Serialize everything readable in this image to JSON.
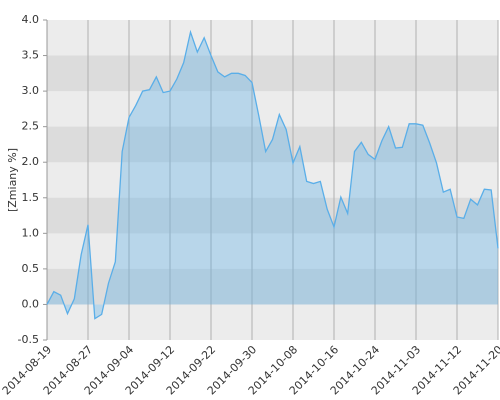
{
  "chart_data": {
    "type": "area",
    "y_label": "[Zmiany %]",
    "categories": [
      "2014-08-19",
      null,
      null,
      null,
      null,
      null,
      "2014-08-27",
      null,
      null,
      null,
      null,
      null,
      "2014-09-04",
      null,
      null,
      null,
      null,
      null,
      "2014-09-12",
      null,
      null,
      null,
      null,
      null,
      "2014-09-22",
      null,
      null,
      null,
      null,
      null,
      "2014-09-30",
      null,
      null,
      null,
      null,
      null,
      "2014-10-08",
      null,
      null,
      null,
      null,
      null,
      "2014-10-16",
      null,
      null,
      null,
      null,
      null,
      "2014-10-24",
      null,
      null,
      null,
      null,
      null,
      "2014-11-03",
      null,
      null,
      null,
      null,
      null,
      "2014-11-12",
      null,
      null,
      null,
      null,
      null,
      "2014-11-20"
    ],
    "values": [
      0.0,
      0.18,
      0.13,
      -0.13,
      0.08,
      0.7,
      1.12,
      -0.2,
      -0.14,
      0.3,
      0.6,
      2.15,
      2.63,
      2.8,
      3.0,
      3.02,
      3.2,
      2.98,
      3.0,
      3.17,
      3.4,
      3.83,
      3.55,
      3.75,
      3.5,
      3.27,
      3.2,
      3.25,
      3.25,
      3.22,
      3.12,
      2.65,
      2.15,
      2.32,
      2.67,
      2.46,
      1.99,
      2.22,
      1.73,
      1.7,
      1.73,
      1.34,
      1.09,
      1.51,
      1.28,
      2.15,
      2.28,
      2.11,
      2.04,
      2.3,
      2.5,
      2.2,
      2.21,
      2.54,
      2.54,
      2.52,
      2.27,
      1.99,
      1.58,
      1.62,
      1.23,
      1.21,
      1.48,
      1.4,
      1.62,
      1.61,
      0.79
    ],
    "color": "#5aaee8",
    "ylim": [
      -0.5,
      4.0
    ],
    "yticks": [
      -0.5,
      {
        "value": 0,
        "label": "0.0"
      },
      0.5,
      {
        "value": 1,
        "label": "1.0"
      },
      1.5,
      {
        "value": 2,
        "label": "2.0"
      },
      2.5,
      {
        "value": 3,
        "label": "3.0"
      },
      3.5,
      {
        "value": 4,
        "label": "4.0"
      }
    ],
    "grid": true
  }
}
